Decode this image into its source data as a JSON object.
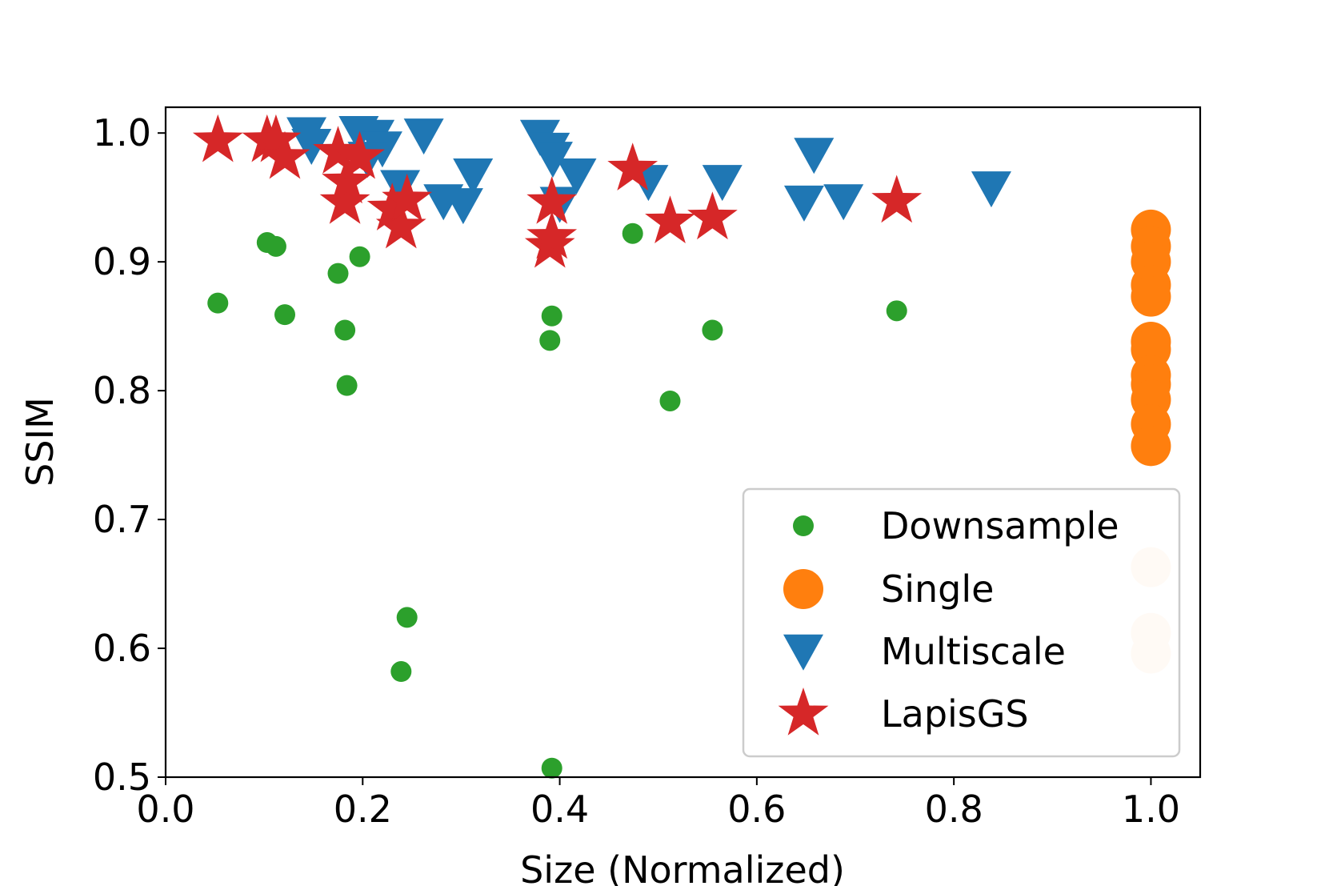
{
  "chart_data": {
    "type": "scatter",
    "title": "",
    "xlabel": "Size (Normalized)",
    "ylabel": "SSIM",
    "xlim": [
      0.0,
      1.05
    ],
    "ylim": [
      0.5,
      1.02
    ],
    "xticks": [
      "0.0",
      "0.2",
      "0.4",
      "0.6",
      "0.8",
      "1.0"
    ],
    "xtick_values": [
      0.0,
      0.2,
      0.4,
      0.6,
      0.8,
      1.0
    ],
    "yticks": [
      "0.5",
      "0.6",
      "0.7",
      "0.8",
      "0.9",
      "1.0"
    ],
    "ytick_values": [
      0.5,
      0.6,
      0.7,
      0.8,
      0.9,
      1.0
    ],
    "grid": false,
    "legend_position": "lower-right",
    "series": [
      {
        "name": "Downsample",
        "marker": "circle",
        "color": "#2ca02c",
        "points": [
          [
            0.053,
            0.868
          ],
          [
            0.103,
            0.915
          ],
          [
            0.112,
            0.912
          ],
          [
            0.121,
            0.859
          ],
          [
            0.175,
            0.891
          ],
          [
            0.182,
            0.847
          ],
          [
            0.184,
            0.804
          ],
          [
            0.197,
            0.904
          ],
          [
            0.239,
            0.582
          ],
          [
            0.245,
            0.624
          ],
          [
            0.39,
            0.839
          ],
          [
            0.392,
            0.858
          ],
          [
            0.392,
            0.507
          ],
          [
            0.474,
            0.922
          ],
          [
            0.512,
            0.792
          ],
          [
            0.555,
            0.847
          ],
          [
            0.742,
            0.862
          ]
        ]
      },
      {
        "name": "Single",
        "marker": "circle-large",
        "color": "#ff7f0e",
        "points": [
          [
            1.0,
            0.925
          ],
          [
            1.0,
            0.912
          ],
          [
            1.0,
            0.9
          ],
          [
            1.0,
            0.882
          ],
          [
            1.0,
            0.873
          ],
          [
            1.0,
            0.838
          ],
          [
            1.0,
            0.832
          ],
          [
            1.0,
            0.812
          ],
          [
            1.0,
            0.805
          ],
          [
            1.0,
            0.793
          ],
          [
            1.0,
            0.774
          ],
          [
            1.0,
            0.757
          ]
        ]
      },
      {
        "name": "Single (faded)",
        "marker": "circle-large",
        "color": "#fde3cc",
        "points": [
          [
            1.0,
            0.663
          ],
          [
            1.0,
            0.612
          ],
          [
            1.0,
            0.596
          ]
        ]
      },
      {
        "name": "Multiscale",
        "marker": "triangle-down",
        "color": "#1f77b4",
        "points": [
          [
            0.143,
            0.999
          ],
          [
            0.148,
            0.99
          ],
          [
            0.196,
            1.0
          ],
          [
            0.212,
            0.997
          ],
          [
            0.22,
            0.988
          ],
          [
            0.205,
            0.98
          ],
          [
            0.238,
            0.958
          ],
          [
            0.262,
            0.998
          ],
          [
            0.282,
            0.947
          ],
          [
            0.302,
            0.944
          ],
          [
            0.312,
            0.967
          ],
          [
            0.38,
            0.997
          ],
          [
            0.39,
            0.987
          ],
          [
            0.393,
            0.98
          ],
          [
            0.4,
            0.945
          ],
          [
            0.417,
            0.967
          ],
          [
            0.49,
            0.962
          ],
          [
            0.565,
            0.962
          ],
          [
            0.648,
            0.946
          ],
          [
            0.658,
            0.983
          ],
          [
            0.688,
            0.947
          ],
          [
            0.838,
            0.957
          ]
        ]
      },
      {
        "name": "LapisGS",
        "marker": "star",
        "color": "#d62728",
        "points": [
          [
            0.053,
            0.994
          ],
          [
            0.103,
            0.994
          ],
          [
            0.112,
            0.994
          ],
          [
            0.121,
            0.981
          ],
          [
            0.175,
            0.985
          ],
          [
            0.182,
            0.946
          ],
          [
            0.184,
            0.962
          ],
          [
            0.197,
            0.981
          ],
          [
            0.23,
            0.941
          ],
          [
            0.239,
            0.927
          ],
          [
            0.245,
            0.948
          ],
          [
            0.39,
            0.912
          ],
          [
            0.392,
            0.919
          ],
          [
            0.392,
            0.946
          ],
          [
            0.474,
            0.972
          ],
          [
            0.512,
            0.931
          ],
          [
            0.555,
            0.934
          ],
          [
            0.742,
            0.947
          ]
        ]
      }
    ],
    "legend": [
      {
        "label": "Downsample",
        "marker": "circle",
        "color": "#2ca02c"
      },
      {
        "label": "Single",
        "marker": "circle-large",
        "color": "#ff7f0e"
      },
      {
        "label": "Multiscale",
        "marker": "triangle-down",
        "color": "#1f77b4"
      },
      {
        "label": "LapisGS",
        "marker": "star",
        "color": "#d62728"
      }
    ]
  }
}
